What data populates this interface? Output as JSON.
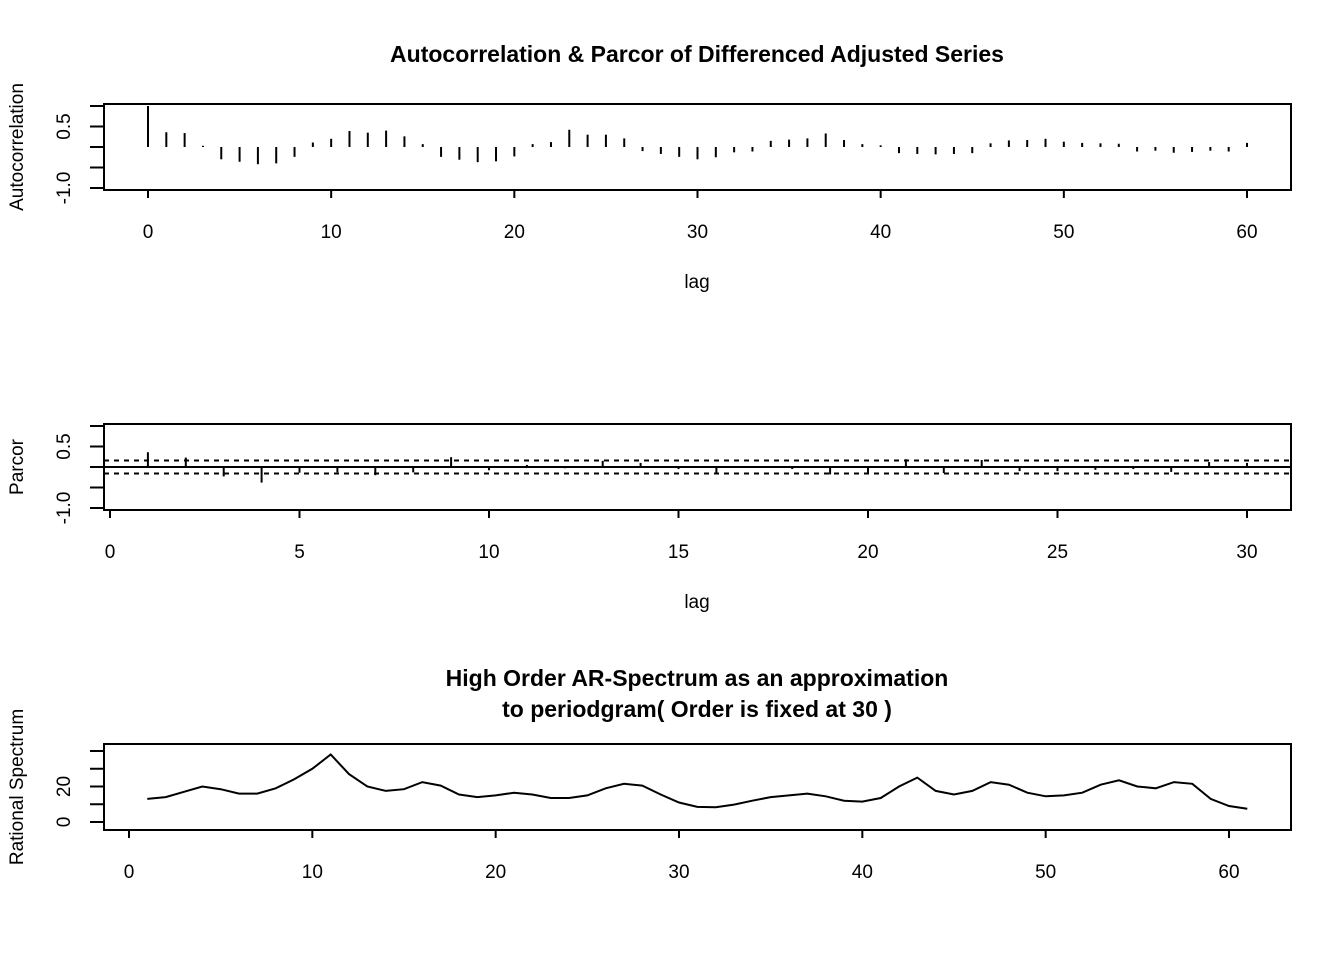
{
  "chart_data": [
    {
      "type": "bar",
      "title": "Autocorrelation & Parcor of Differenced Adjusted Series",
      "xlabel": "lag",
      "ylabel": "Autocorrelation",
      "xlim": [
        0,
        60
      ],
      "ylim": [
        -1.0,
        1.0
      ],
      "xticks": [
        0,
        10,
        20,
        30,
        40,
        50,
        60
      ],
      "yticks": [
        "-1.0",
        "0.5"
      ],
      "x": [
        0,
        1,
        2,
        3,
        4,
        5,
        6,
        7,
        8,
        9,
        10,
        11,
        12,
        13,
        14,
        15,
        16,
        17,
        18,
        19,
        20,
        21,
        22,
        23,
        24,
        25,
        26,
        27,
        28,
        29,
        30,
        31,
        32,
        33,
        34,
        35,
        36,
        37,
        38,
        39,
        40,
        41,
        42,
        43,
        44,
        45,
        46,
        47,
        48,
        49,
        50,
        51,
        52,
        53,
        54,
        55,
        56,
        57,
        58,
        59,
        60
      ],
      "values": [
        1.0,
        0.36,
        0.34,
        0.03,
        -0.3,
        -0.36,
        -0.42,
        -0.4,
        -0.24,
        0.11,
        0.2,
        0.39,
        0.35,
        0.4,
        0.26,
        0.07,
        -0.24,
        -0.31,
        -0.37,
        -0.35,
        -0.23,
        0.07,
        0.12,
        0.42,
        0.3,
        0.3,
        0.21,
        -0.1,
        -0.17,
        -0.24,
        -0.3,
        -0.25,
        -0.13,
        -0.11,
        0.15,
        0.18,
        0.21,
        0.33,
        0.17,
        0.07,
        0.04,
        -0.15,
        -0.17,
        -0.18,
        -0.17,
        -0.15,
        0.09,
        0.16,
        0.17,
        0.2,
        0.13,
        0.1,
        0.09,
        0.08,
        -0.11,
        -0.09,
        -0.14,
        -0.12,
        -0.09,
        -0.11,
        0.1
      ]
    },
    {
      "type": "bar",
      "title": "",
      "xlabel": "lag",
      "ylabel": "Parcor",
      "xlim": [
        0,
        30
      ],
      "ylim": [
        -1.0,
        1.0
      ],
      "xticks": [
        0,
        5,
        10,
        15,
        20,
        25,
        30
      ],
      "yticks": [
        "-1.0",
        "0.5"
      ],
      "confidence_band": 0.16,
      "x": [
        1,
        2,
        3,
        4,
        5,
        6,
        7,
        8,
        9,
        10,
        11,
        12,
        13,
        14,
        15,
        16,
        17,
        18,
        19,
        20,
        21,
        22,
        23,
        24,
        25,
        26,
        27,
        28,
        29,
        30
      ],
      "values": [
        0.36,
        0.23,
        -0.23,
        -0.38,
        -0.14,
        -0.13,
        -0.2,
        -0.13,
        0.24,
        -0.08,
        0.05,
        -0.03,
        0.15,
        0.1,
        -0.05,
        -0.18,
        0.02,
        -0.05,
        -0.18,
        -0.15,
        0.19,
        -0.15,
        0.17,
        -0.1,
        -0.1,
        -0.07,
        -0.05,
        -0.12,
        0.12,
        0.1
      ]
    },
    {
      "type": "line",
      "title": "High Order AR-Spectrum as an approximation\nto periodgram( Order is fixed at 30 )",
      "xlabel": "",
      "ylabel": "Rational Spectrum",
      "xlim": [
        0,
        63
      ],
      "ylim": [
        -5,
        45
      ],
      "xticks": [
        0,
        10,
        20,
        30,
        40,
        50,
        60
      ],
      "yticks": [
        "0",
        "20"
      ],
      "yticks_unlabeled": [
        10,
        30,
        40
      ],
      "x": [
        1,
        2,
        3,
        4,
        5,
        6,
        7,
        8,
        9,
        10,
        11,
        12,
        13,
        14,
        15,
        16,
        17,
        18,
        19,
        20,
        21,
        22,
        23,
        24,
        25,
        26,
        27,
        28,
        29,
        30,
        31,
        32,
        33,
        34,
        35,
        36,
        37,
        38,
        39,
        40,
        41,
        42,
        43,
        44,
        45,
        46,
        47,
        48,
        49,
        50,
        51,
        52,
        53,
        54,
        55,
        56,
        57,
        58,
        59,
        60,
        61
      ],
      "values": [
        13,
        14,
        17,
        20,
        18.5,
        16,
        16,
        19,
        24,
        30,
        38,
        27,
        20,
        17.5,
        18.5,
        22.5,
        20.5,
        15.5,
        14,
        15,
        16.5,
        15.5,
        13.5,
        13.5,
        15,
        19,
        21.5,
        20.5,
        15.5,
        11,
        8.5,
        8.3,
        9.8,
        12,
        14,
        15,
        16,
        14.5,
        12,
        11.5,
        13.5,
        20,
        25,
        17.5,
        15.5,
        17.5,
        22.5,
        21,
        16.5,
        14.5,
        15,
        16.5,
        21,
        23.5,
        20,
        19,
        22.5,
        21.5,
        13,
        9,
        7.5
      ]
    }
  ]
}
